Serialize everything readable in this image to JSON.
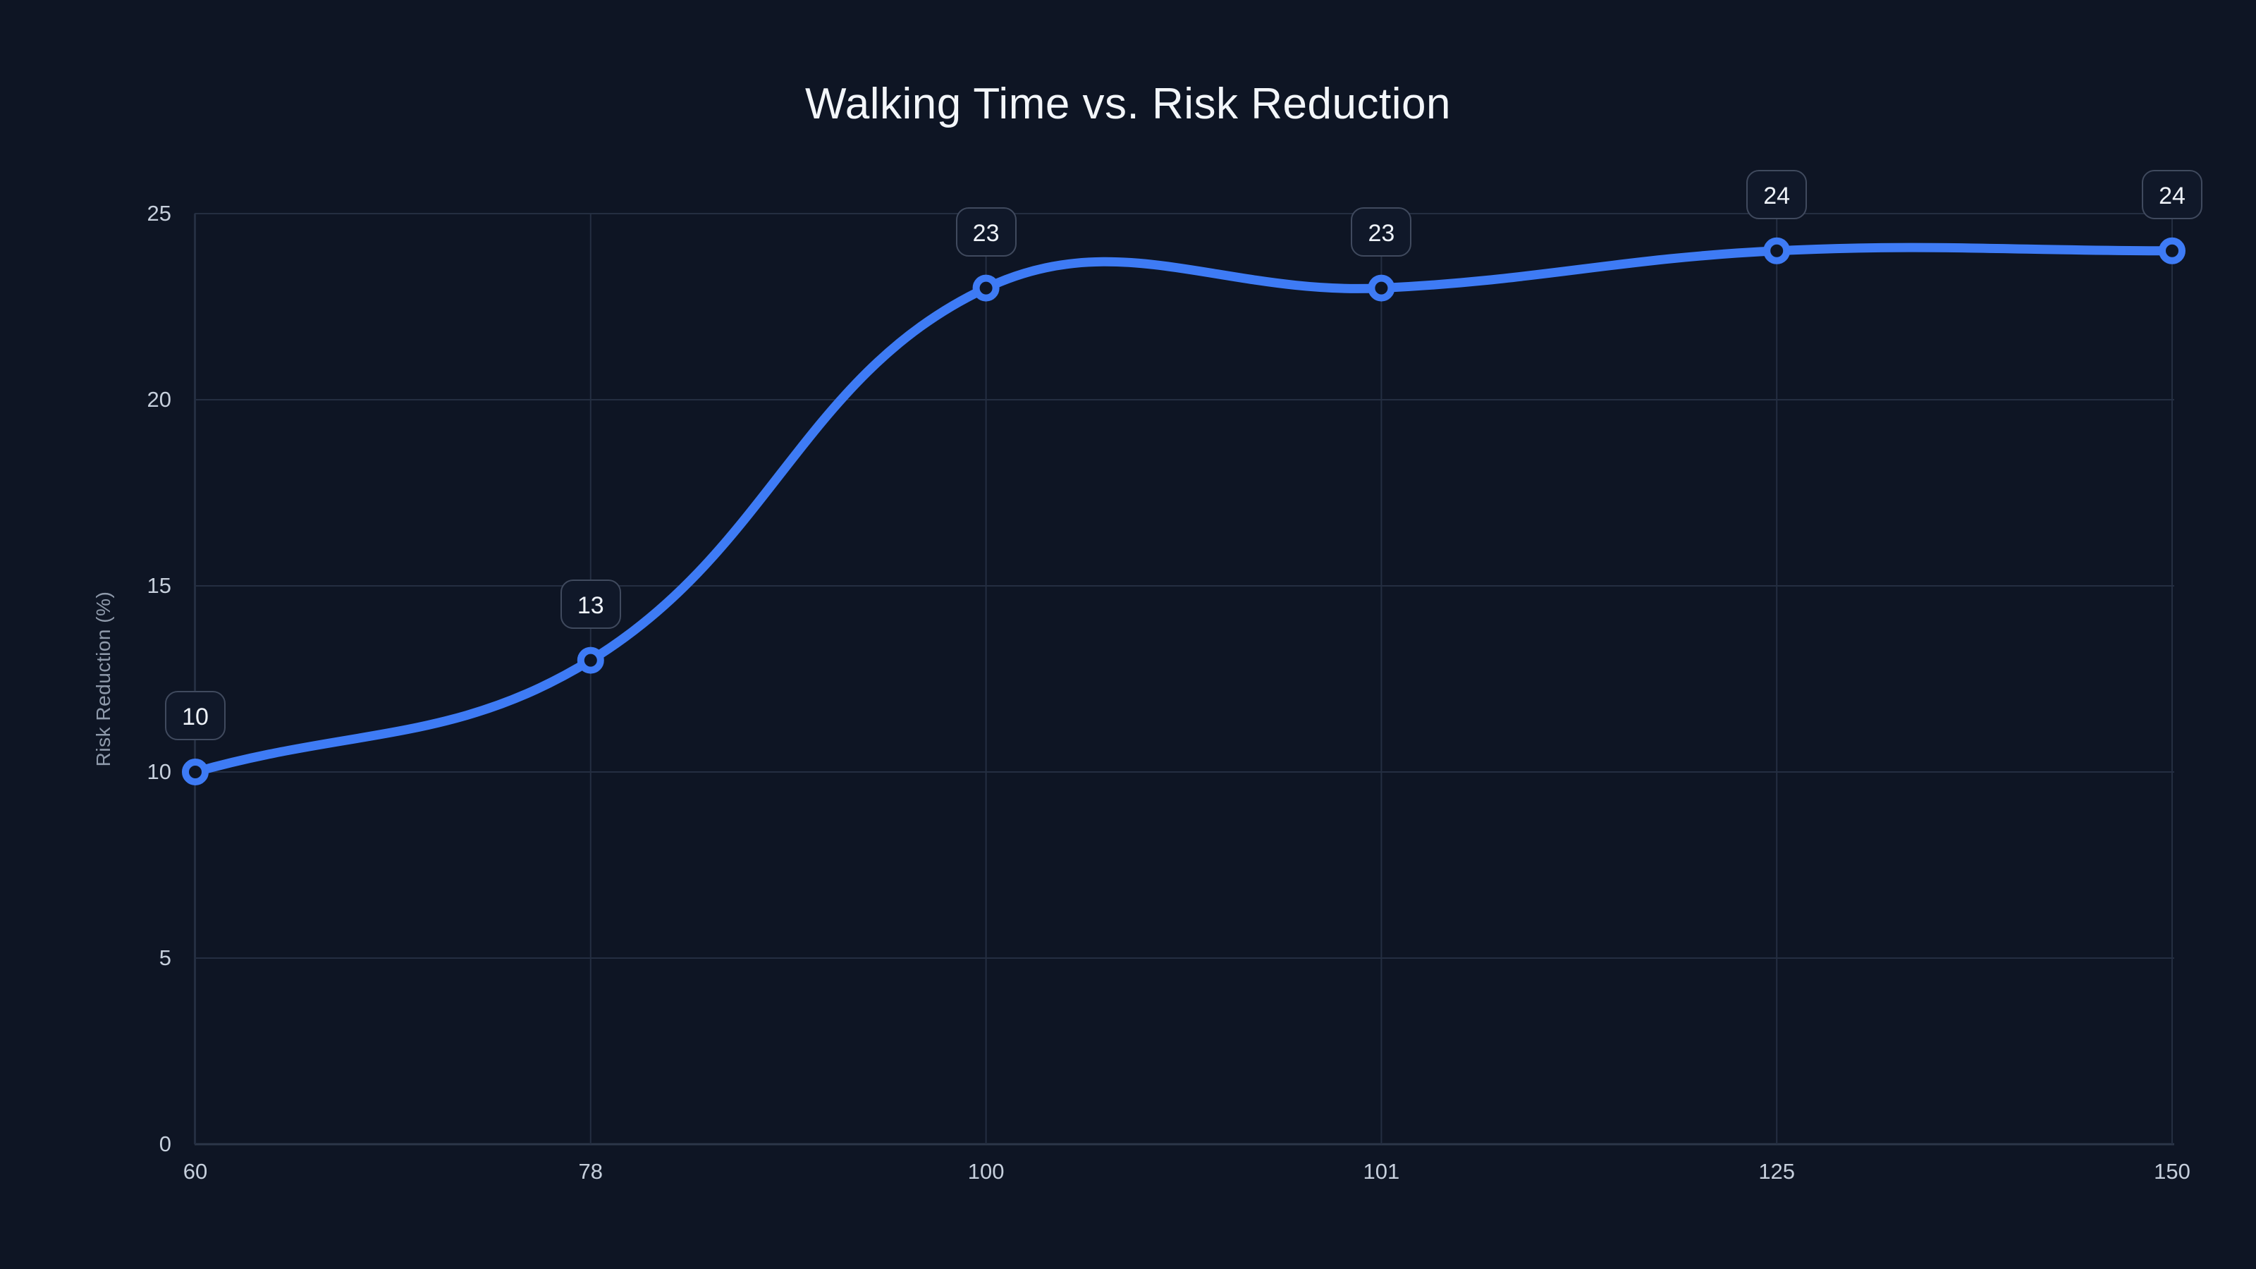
{
  "chart_data": {
    "type": "line",
    "title": "Walking Time vs. Risk Reduction",
    "xlabel": "",
    "ylabel": "Risk Reduction (%)",
    "categories": [
      "60",
      "78",
      "100",
      "101",
      "125",
      "150"
    ],
    "values": [
      10,
      13,
      23,
      23,
      24,
      24
    ],
    "point_labels": [
      "10",
      "13",
      "23",
      "23",
      "24",
      "24"
    ],
    "y_ticks": [
      0,
      5,
      10,
      15,
      20,
      25
    ],
    "ylim": [
      0,
      25
    ],
    "grid": true,
    "legend": false,
    "line_tension": 0.4,
    "colors": {
      "background": "#0e1524",
      "title_text": "#f3f6fa",
      "tick_text": "#c6cfdc",
      "axis_label_text": "#8f9aab",
      "grid_line": "#242e41",
      "axis_line": "#2c3649",
      "series_line": "#3e7bf5",
      "marker_ring": "#3e7bf5",
      "marker_fill": "#0e1524",
      "badge_background": "#101829",
      "badge_border": "#404a5e",
      "badge_text": "#eef2f8"
    }
  }
}
